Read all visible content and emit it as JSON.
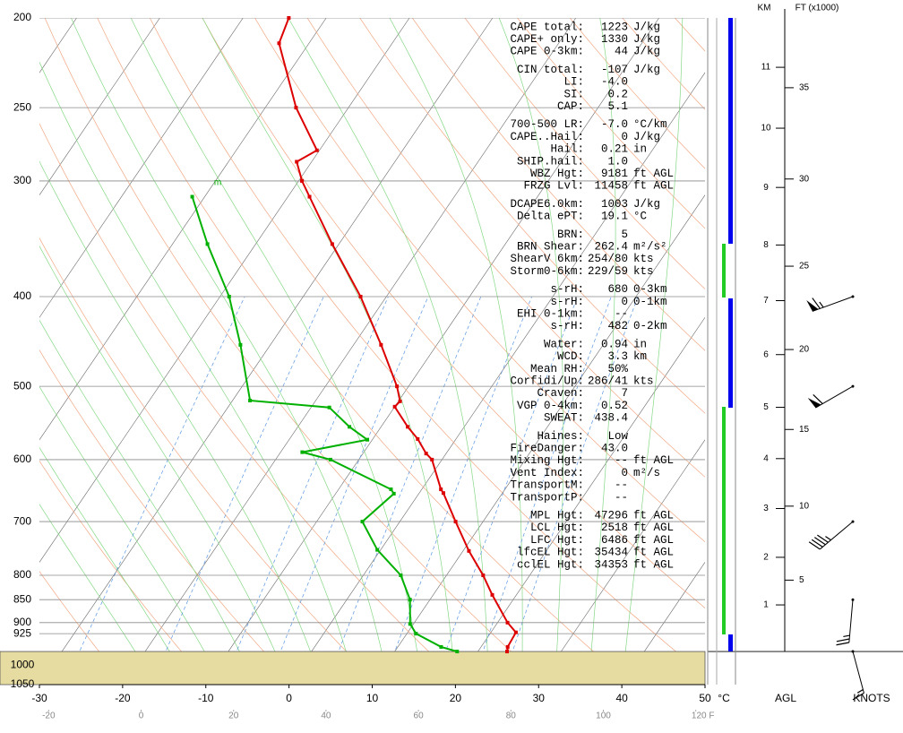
{
  "chart_data": {
    "type": "skewt",
    "ylim": [
      1050,
      200
    ],
    "yticks": [
      200,
      250,
      300,
      400,
      500,
      600,
      700,
      800,
      850,
      900,
      925,
      1000,
      1050
    ],
    "xlim": [
      -30,
      50
    ],
    "xticks": [
      -30,
      -20,
      -10,
      0,
      10,
      20,
      30,
      40,
      50
    ],
    "x2ticks": [
      -20,
      0,
      20,
      40,
      60,
      80,
      100,
      {
        "value": 120,
        "label": "120 F"
      }
    ],
    "xlabel": "°C",
    "annotation": "m",
    "series": [
      {
        "color": "#dd0000",
        "pressure": [
          200,
          213,
          250,
          278,
          286,
          300,
          312,
          351,
          400,
          451,
          500,
          519,
          526,
          553,
          570,
          591,
          600,
          646,
          652,
          700,
          753,
          800,
          840,
          900,
          922,
          956,
          967
        ],
        "values": [
          -54.5,
          -53.6,
          -46.3,
          -40.3,
          -41.8,
          -39.6,
          -37.4,
          -30.8,
          -23.1,
          -16.7,
          -11.4,
          -9.8,
          -10.0,
          -6.8,
          -4.6,
          -2.4,
          -1.2,
          2.3,
          2.9,
          6.7,
          10.7,
          14.4,
          17.1,
          21.2,
          23.0,
          23.2,
          23.5
        ]
      },
      {
        "color": "#00b000",
        "pressure": [
          312,
          351,
          400,
          451,
          518,
          527,
          553,
          571,
          589,
          600,
          646,
          653,
          700,
          751,
          800,
          850,
          903,
          925,
          956,
          967
        ],
        "values": [
          -51.5,
          -45.8,
          -38.9,
          -33.6,
          -27.9,
          -17.8,
          -13.8,
          -10.6,
          -17.4,
          -13.4,
          -3.7,
          -3.0,
          -4.5,
          -0.4,
          4.5,
          7.6,
          9.6,
          11.1,
          15.2,
          17.5
        ]
      }
    ],
    "height_axis": {
      "km_label": "KM",
      "ft_label": "FT (x1000)",
      "label": "AGL",
      "km_ticks": [
        1,
        2,
        3,
        4,
        5,
        6,
        7,
        8,
        9,
        10,
        11
      ],
      "ft_ticks": [
        5,
        10,
        15,
        20,
        25,
        30,
        35
      ]
    },
    "wind": {
      "label": "KNOTS",
      "pressure": [
        400,
        500,
        700,
        850,
        967
      ],
      "direction": [
        250,
        240,
        230,
        185,
        165
      ],
      "speed": [
        65,
        60,
        45,
        25,
        15
      ]
    }
  },
  "parameters": [
    [
      {
        "label": "CAPE total:",
        "value": "1223",
        "unit": "J/kg"
      },
      {
        "label": "CAPE+ only:",
        "value": "1330",
        "unit": "J/kg"
      },
      {
        "label": "CAPE 0-3km:",
        "value": "44",
        "unit": "J/kg"
      }
    ],
    [
      {
        "label": "CIN total:",
        "value": "-107",
        "unit": "J/kg"
      },
      {
        "label": "LI:",
        "value": "-4.0"
      },
      {
        "label": "SI:",
        "value": "0.2"
      },
      {
        "label": "CAP:",
        "value": "5.1"
      }
    ],
    [
      {
        "label": "700-500 LR:",
        "value": "-7.0",
        "unit": "°C/km"
      },
      {
        "label": "CAPE..Hail:",
        "value": "0",
        "unit": "J/kg"
      },
      {
        "label": "Hail:",
        "value": "0.21",
        "unit": "in"
      },
      {
        "label": "SHIP.hail:",
        "value": "1.0"
      },
      {
        "label": "WBZ Hgt:",
        "value": "9181",
        "unit": "ft AGL"
      },
      {
        "label": "FRZG Lvl:",
        "value": "11458",
        "unit": "ft AGL"
      }
    ],
    [
      {
        "label": "DCAPE6.0km:",
        "value": "1003",
        "unit": "J/kg"
      },
      {
        "label": "Delta ePT:",
        "value": "19.1",
        "unit": "°C"
      }
    ],
    [
      {
        "label": "BRN:",
        "value": "5"
      },
      {
        "label": "BRN Shear:",
        "value": "262.4",
        "unit": "m²/s²"
      },
      {
        "label": "ShearV 6km:",
        "value": "254/80",
        "unit": "kts"
      },
      {
        "label": "Storm0-6km:",
        "value": "229/59",
        "unit": "kts"
      }
    ],
    [
      {
        "label": "s-rH:",
        "value": "680",
        "unit": "0-3km"
      },
      {
        "label": "s-rH:",
        "value": "0",
        "unit": "0-1km"
      },
      {
        "label": "EHI 0-1km:",
        "value": "--"
      },
      {
        "label": "s-rH:",
        "value": "482",
        "unit": "0-2km"
      }
    ],
    [
      {
        "label": "Water:",
        "value": "0.94",
        "unit": "in"
      },
      {
        "label": "WCD:",
        "value": "3.3",
        "unit": "km"
      },
      {
        "label": "Mean RH:",
        "value": "50%"
      },
      {
        "label": "Corfidi/Up:",
        "value": "286/41",
        "unit": "kts"
      },
      {
        "label": "Craven:",
        "value": "7"
      },
      {
        "label": "VGP 0-4km:",
        "value": "0.52"
      },
      {
        "label": "SWEAT:",
        "value": "438.4"
      }
    ],
    [
      {
        "label": "Haines:",
        "value": "Low"
      },
      {
        "label": "FireDanger:",
        "value": "43.0"
      },
      {
        "label": "Mixing Hgt:",
        "value": "--",
        "unit": "ft AGL"
      },
      {
        "label": "Vent Index:",
        "value": "0",
        "unit": "m²/s"
      },
      {
        "label": "TransportM:",
        "value": "--"
      },
      {
        "label": "TransportP:",
        "value": "--"
      }
    ],
    [
      {
        "label": "MPL Hgt:",
        "value": "47296",
        "unit": "ft AGL"
      },
      {
        "label": "LCL Hgt:",
        "value": "2518",
        "unit": "ft AGL"
      },
      {
        "label": "LFC Hgt:",
        "value": "6486",
        "unit": "ft AGL"
      },
      {
        "label": "lfcEL Hgt:",
        "value": "35434",
        "unit": "ft AGL"
      },
      {
        "label": "cclEL Hgt:",
        "value": "34353",
        "unit": "ft AGL"
      }
    ]
  ]
}
